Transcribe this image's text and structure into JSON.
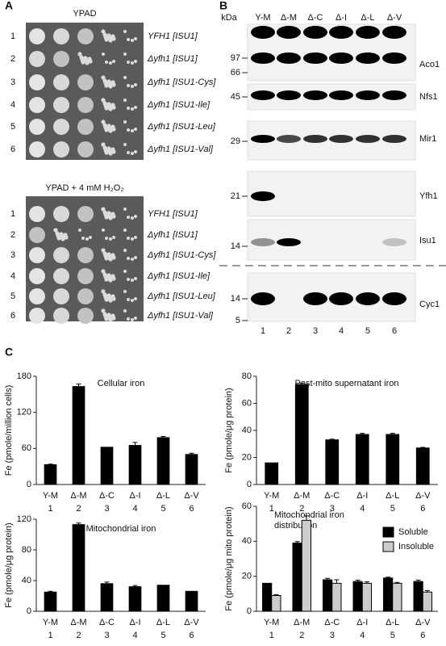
{
  "panel_labels": [
    "A",
    "B",
    "C"
  ],
  "panel_a": {
    "plates": [
      {
        "title": "YPAD",
        "rows": [
          "1",
          "2",
          "3",
          "4",
          "5",
          "6"
        ],
        "genotypes": [
          "YFH1 [ISU1]",
          "Δyfh1 [ISU1]",
          "Δyfh1 [ISU1-Cys]",
          "Δyfh1 [ISU1-Ile]",
          "Δyfh1 [ISU1-Leu]",
          "Δyfh1 [ISU1-Val]"
        ]
      },
      {
        "title": "YPAD + 4 mM H₂O₂",
        "rows": [
          "1",
          "2",
          "3",
          "4",
          "5",
          "6"
        ],
        "genotypes": [
          "YFH1 [ISU1]",
          "Δyfh1 [ISU1]",
          "Δyfh1 [ISU1-Cys]",
          "Δyfh1 [ISU1-Ile]",
          "Δyfh1 [ISU1-Leu]",
          "Δyfh1 [ISU1-Val]"
        ]
      }
    ]
  },
  "panel_b": {
    "unit": "kDa",
    "lanes": [
      "Y-M",
      "Δ-M",
      "Δ-C",
      "Δ-I",
      "Δ-L",
      "Δ-V"
    ],
    "lane_numbers": [
      "1",
      "2",
      "3",
      "4",
      "5",
      "6"
    ],
    "markers": [
      "97",
      "66",
      "45",
      "29",
      "21",
      "14",
      "14",
      "5"
    ],
    "proteins": [
      "Aco1",
      "Nfs1",
      "Mir1",
      "Yfh1",
      "Isu1",
      "Cyc1"
    ]
  },
  "chart_data": [
    {
      "type": "bar",
      "title": "Cellular iron",
      "ylabel": "Fe (pmole/million cells)",
      "categories": [
        "Y-M",
        "Δ-M",
        "Δ-C",
        "Δ-I",
        "Δ-L",
        "Δ-V"
      ],
      "lane_numbers": [
        "1",
        "2",
        "3",
        "4",
        "5",
        "6"
      ],
      "values": [
        33,
        163,
        62,
        65,
        78,
        50
      ],
      "errors": [
        1,
        4,
        0,
        5,
        2,
        2
      ],
      "color": "#000000",
      "ylim": [
        0,
        180
      ],
      "yticks": [
        0,
        60,
        120,
        180
      ]
    },
    {
      "type": "bar",
      "title": "Post-mito supernatant iron",
      "ylabel": "Fe (pmole/μg protein)",
      "categories": [
        "Y-M",
        "Δ-M",
        "Δ-C",
        "Δ-I",
        "Δ-L",
        "Δ-V"
      ],
      "lane_numbers": [
        "1",
        "2",
        "3",
        "4",
        "5",
        "6"
      ],
      "values": [
        16,
        74,
        33,
        37,
        37,
        27
      ],
      "errors": [
        0,
        1,
        0.5,
        0.8,
        0.8,
        0.5
      ],
      "color": "#000000",
      "ylim": [
        0,
        80
      ],
      "yticks": [
        0,
        20,
        40,
        60,
        80
      ]
    },
    {
      "type": "bar",
      "title": "Mitochondrial iron",
      "ylabel": "Fe (pmole/μg protein)",
      "categories": [
        "Y-M",
        "Δ-M",
        "Δ-C",
        "Δ-I",
        "Δ-L",
        "Δ-V"
      ],
      "lane_numbers": [
        "1",
        "2",
        "3",
        "4",
        "5",
        "6"
      ],
      "values": [
        25,
        113,
        36,
        32,
        34,
        26
      ],
      "errors": [
        1,
        2,
        2,
        1.5,
        0,
        0
      ],
      "color": "#000000",
      "ylim": [
        0,
        120
      ],
      "yticks": [
        0,
        40,
        80,
        120
      ]
    },
    {
      "type": "grouped_bar",
      "title": [
        "Mitochondrial iron",
        "distribution"
      ],
      "ylabel": "Fe (pmole/μg mito protein)",
      "categories": [
        "Y-M",
        "Δ-M",
        "Δ-C",
        "Δ-I",
        "Δ-L",
        "Δ-V"
      ],
      "lane_numbers": [
        "1",
        "2",
        "3",
        "4",
        "5",
        "6"
      ],
      "series": [
        {
          "name": "Soluble",
          "color": "#000000",
          "values": [
            16,
            39,
            18,
            17,
            19,
            17
          ],
          "errors": [
            0,
            0.8,
            0.8,
            0.8,
            0.5,
            0.8
          ]
        },
        {
          "name": "Insoluble",
          "color": "#cccccc",
          "values": [
            9,
            52,
            16,
            16,
            16,
            11
          ],
          "errors": [
            0.5,
            2.5,
            2,
            0.8,
            0.5,
            0.8
          ]
        }
      ],
      "ylim": [
        0,
        60
      ],
      "yticks": [
        0,
        20,
        40,
        60
      ],
      "legend": "upper right"
    }
  ]
}
